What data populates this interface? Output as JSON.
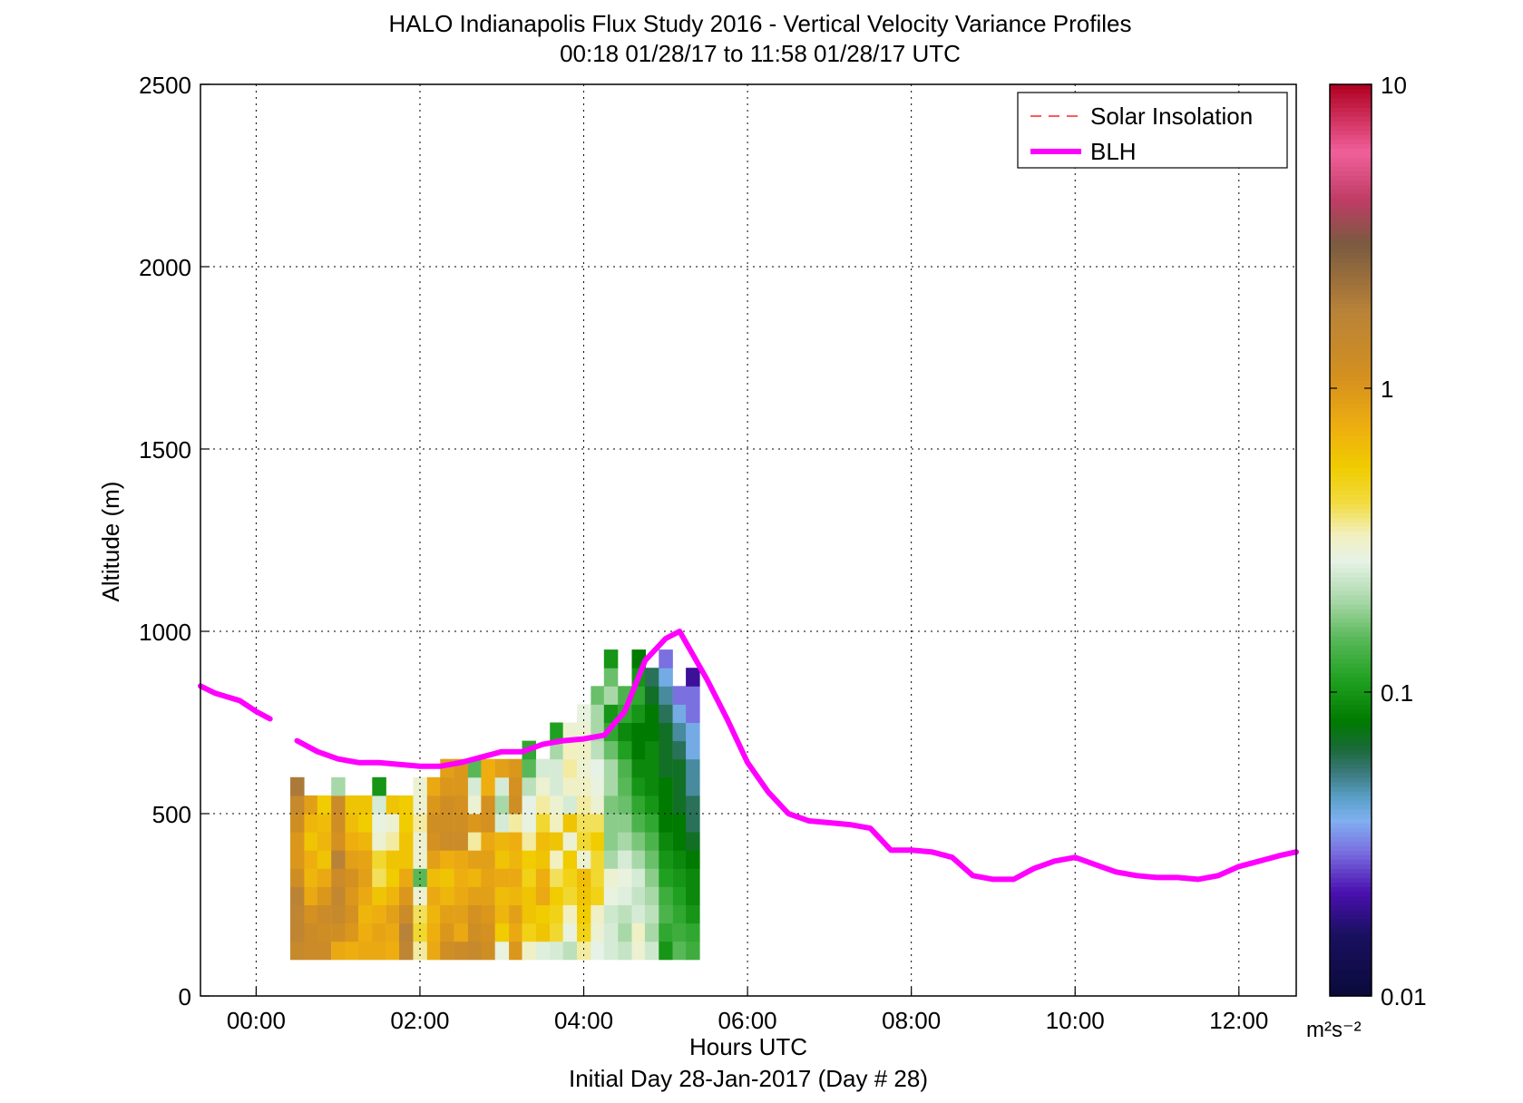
{
  "chart_data": {
    "type": "heatmap",
    "title": "HALO Indianapolis Flux Study 2016 - Vertical Velocity Variance Profiles",
    "subtitle": "00:18 01/28/17 to 11:58 01/28/17  UTC",
    "xlabel": "Hours UTC",
    "xlabel2": "Initial Day 28-Jan-2017 (Day # 28)",
    "ylabel": "Altitude (m)",
    "xlim": [
      -0.68,
      12.7
    ],
    "ylim": [
      0,
      2500
    ],
    "grid": true,
    "x_ticks": [
      {
        "value": 0,
        "label": "00:00"
      },
      {
        "value": 2,
        "label": "02:00"
      },
      {
        "value": 4,
        "label": "04:00"
      },
      {
        "value": 6,
        "label": "06:00"
      },
      {
        "value": 8,
        "label": "08:00"
      },
      {
        "value": 10,
        "label": "10:00"
      },
      {
        "value": 12,
        "label": "12:00"
      }
    ],
    "y_ticks": [
      {
        "value": 0,
        "label": "0"
      },
      {
        "value": 500,
        "label": "500"
      },
      {
        "value": 1000,
        "label": "1000"
      },
      {
        "value": 1500,
        "label": "1500"
      },
      {
        "value": 2000,
        "label": "2000"
      },
      {
        "value": 2500,
        "label": "2500"
      }
    ],
    "colorbar": {
      "scale": "log",
      "range": [
        0.01,
        10
      ],
      "unit": "m²s⁻²",
      "ticks": [
        {
          "value": 0.01,
          "label": "0.01"
        },
        {
          "value": 0.1,
          "label": "0.1"
        },
        {
          "value": 1,
          "label": "1"
        },
        {
          "value": 10,
          "label": "10"
        }
      ],
      "stops": [
        {
          "v": 0.01,
          "color": "#0a0a3a"
        },
        {
          "v": 0.016,
          "color": "#1a1060"
        },
        {
          "v": 0.022,
          "color": "#4a10b0"
        },
        {
          "v": 0.03,
          "color": "#7a70e0"
        },
        {
          "v": 0.038,
          "color": "#80b0f0"
        },
        {
          "v": 0.045,
          "color": "#5aa0c8"
        },
        {
          "v": 0.055,
          "color": "#3a7878"
        },
        {
          "v": 0.065,
          "color": "#1a6a3a"
        },
        {
          "v": 0.08,
          "color": "#007a00"
        },
        {
          "v": 0.11,
          "color": "#20a020"
        },
        {
          "v": 0.15,
          "color": "#58b858"
        },
        {
          "v": 0.2,
          "color": "#a8d8a8"
        },
        {
          "v": 0.27,
          "color": "#e6f2e6"
        },
        {
          "v": 0.33,
          "color": "#f2f0c0"
        },
        {
          "v": 0.42,
          "color": "#f2dc40"
        },
        {
          "v": 0.55,
          "color": "#f0cc00"
        },
        {
          "v": 0.75,
          "color": "#eeae10"
        },
        {
          "v": 1.1,
          "color": "#d49020"
        },
        {
          "v": 1.8,
          "color": "#b88238"
        },
        {
          "v": 3,
          "color": "#7a5a40"
        },
        {
          "v": 4.2,
          "color": "#c03c66"
        },
        {
          "v": 6,
          "color": "#f0609a"
        },
        {
          "v": 10,
          "color": "#b00020"
        }
      ]
    },
    "legend": {
      "position": "top-right",
      "entries": [
        {
          "name": "Solar Insolation",
          "style": "dashed",
          "color": "#ff2020"
        },
        {
          "name": "BLH",
          "style": "solid",
          "color": "#ff00ff"
        }
      ]
    },
    "cell_size": {
      "dx": 0.1667,
      "dy": 50
    },
    "columns": [
      {
        "x": 0.5,
        "y0": 100,
        "values": [
          1.4,
          1.6,
          1.6,
          1.7,
          1.2,
          1.0,
          1.0,
          1.2,
          1.4,
          2.0
        ]
      },
      {
        "x": 0.67,
        "y0": 100,
        "values": [
          1.3,
          1.3,
          1.1,
          0.8,
          0.7,
          0.75,
          0.6,
          0.7,
          0.9
        ]
      },
      {
        "x": 0.83,
        "y0": 100,
        "values": [
          1.3,
          1.2,
          1.3,
          1.0,
          0.8,
          0.6,
          0.7,
          0.65,
          0.55
        ]
      },
      {
        "x": 1.0,
        "y0": 100,
        "values": [
          0.8,
          1.2,
          1.4,
          1.5,
          1.3,
          1.8,
          1.1,
          1.2,
          1.3,
          0.2
        ]
      },
      {
        "x": 1.17,
        "y0": 100,
        "values": [
          0.75,
          1.0,
          1.1,
          1.0,
          1.1,
          0.9,
          0.75,
          0.65,
          0.6
        ]
      },
      {
        "x": 1.33,
        "y0": 100,
        "values": [
          0.8,
          0.75,
          0.7,
          0.8,
          0.9,
          0.85,
          0.7,
          0.55,
          0.6
        ]
      },
      {
        "x": 1.5,
        "y0": 100,
        "values": [
          0.8,
          0.85,
          0.75,
          0.6,
          0.4,
          0.45,
          0.3,
          0.28,
          0.25,
          0.1
        ]
      },
      {
        "x": 1.67,
        "y0": 100,
        "values": [
          0.75,
          0.8,
          0.9,
          0.7,
          0.55,
          0.6,
          0.35,
          0.3,
          0.6
        ]
      },
      {
        "x": 1.83,
        "y0": 100,
        "values": [
          1.6,
          1.8,
          1.3,
          1.0,
          0.8,
          0.6,
          0.6,
          0.55,
          0.55
        ]
      },
      {
        "x": 2.0,
        "y0": 100,
        "values": [
          0.35,
          0.45,
          0.4,
          0.3,
          0.15,
          0.3,
          0.3,
          0.35,
          0.3,
          0.3
        ]
      },
      {
        "x": 2.17,
        "y0": 100,
        "values": [
          0.8,
          0.75,
          0.7,
          0.8,
          0.65,
          0.9,
          1.1,
          1.2,
          1.0,
          0.8
        ]
      },
      {
        "x": 2.33,
        "y0": 100,
        "values": [
          1.2,
          1.0,
          0.9,
          0.7,
          0.6,
          0.75,
          1.3,
          1.2,
          1.2,
          1.0,
          0.9
        ]
      },
      {
        "x": 2.5,
        "y0": 100,
        "values": [
          1.3,
          0.8,
          0.9,
          0.8,
          0.75,
          0.8,
          1.3,
          1.2,
          1.1,
          1.0,
          1.0
        ]
      },
      {
        "x": 2.67,
        "y0": 100,
        "values": [
          1.4,
          1.2,
          1.1,
          0.9,
          0.7,
          0.9,
          0.35,
          1.0,
          0.3,
          0.25,
          0.15
        ]
      },
      {
        "x": 2.83,
        "y0": 100,
        "values": [
          1.2,
          1.1,
          1.0,
          0.9,
          0.85,
          0.9,
          0.8,
          1.1,
          1.1,
          0.75,
          0.75
        ]
      },
      {
        "x": 3.0,
        "y0": 100,
        "values": [
          0.28,
          0.55,
          0.7,
          0.65,
          0.8,
          0.6,
          0.7,
          0.25,
          0.2,
          0.25,
          0.9
        ]
      },
      {
        "x": 3.17,
        "y0": 100,
        "values": [
          1.0,
          0.8,
          0.9,
          0.7,
          0.8,
          0.7,
          0.75,
          0.35,
          1.2,
          1.1,
          1.0
        ]
      },
      {
        "x": 3.33,
        "y0": 100,
        "values": [
          0.32,
          0.5,
          0.6,
          0.6,
          0.5,
          0.55,
          0.35,
          0.28,
          0.27,
          0.22,
          0.15,
          0.12
        ]
      },
      {
        "x": 3.5,
        "y0": 100,
        "values": [
          0.26,
          0.6,
          0.55,
          0.8,
          0.75,
          0.6,
          0.65,
          0.45,
          0.35,
          0.3,
          0.25
        ]
      },
      {
        "x": 3.67,
        "y0": 100,
        "values": [
          0.25,
          0.45,
          0.5,
          0.55,
          0.4,
          0.33,
          0.6,
          0.33,
          0.3,
          0.25,
          0.25,
          0.2,
          0.11
        ]
      },
      {
        "x": 3.83,
        "y0": 100,
        "values": [
          0.22,
          0.28,
          0.33,
          0.45,
          0.5,
          0.55,
          0.3,
          0.6,
          0.25,
          0.32,
          0.35,
          0.33,
          0.3
        ]
      },
      {
        "x": 4.0,
        "y0": 100,
        "values": [
          0.35,
          0.5,
          0.55,
          0.6,
          0.65,
          0.3,
          0.45,
          0.4,
          0.35,
          0.32,
          0.3,
          0.32,
          0.3,
          0.28
        ]
      },
      {
        "x": 4.17,
        "y0": 100,
        "values": [
          0.27,
          0.3,
          0.32,
          0.5,
          0.45,
          0.45,
          0.55,
          0.4,
          0.3,
          0.28,
          0.27,
          0.22,
          0.2,
          0.2,
          0.16
        ]
      },
      {
        "x": 4.33,
        "y0": 100,
        "values": [
          0.25,
          0.25,
          0.24,
          0.28,
          0.3,
          0.2,
          0.18,
          0.18,
          0.17,
          0.2,
          0.2,
          0.16,
          0.12,
          0.1,
          0.2,
          0.16,
          0.1
        ]
      },
      {
        "x": 4.5,
        "y0": 100,
        "values": [
          0.23,
          0.2,
          0.22,
          0.26,
          0.28,
          0.25,
          0.2,
          0.18,
          0.16,
          0.15,
          0.14,
          0.11,
          0.09,
          0.12,
          0.14
        ]
      },
      {
        "x": 4.67,
        "y0": 100,
        "values": [
          0.3,
          0.32,
          0.25,
          0.23,
          0.25,
          0.2,
          0.17,
          0.14,
          0.12,
          0.1,
          0.09,
          0.08,
          0.08,
          0.1,
          0.12,
          0.1,
          0.08
        ]
      },
      {
        "x": 4.83,
        "y0": 100,
        "values": [
          0.24,
          0.2,
          0.22,
          0.2,
          0.18,
          0.16,
          0.14,
          0.12,
          0.1,
          0.09,
          0.09,
          0.09,
          0.08,
          0.08,
          0.07,
          0.06
        ]
      },
      {
        "x": 5.0,
        "y0": 100,
        "values": [
          0.1,
          0.12,
          0.14,
          0.13,
          0.11,
          0.1,
          0.09,
          0.08,
          0.08,
          0.08,
          0.07,
          0.07,
          0.07,
          0.06,
          0.05,
          0.04,
          0.03
        ]
      },
      {
        "x": 5.17,
        "y0": 100,
        "values": [
          0.15,
          0.13,
          0.12,
          0.11,
          0.1,
          0.09,
          0.08,
          0.08,
          0.07,
          0.07,
          0.07,
          0.06,
          0.05,
          0.04,
          0.03
        ]
      },
      {
        "x": 5.33,
        "y0": 100,
        "values": [
          0.13,
          0.12,
          0.1,
          0.09,
          0.09,
          0.08,
          0.07,
          0.06,
          0.06,
          0.05,
          0.05,
          0.04,
          0.04,
          0.03,
          0.03,
          0.02
        ]
      }
    ],
    "blh": {
      "x": [
        -0.68,
        -0.5,
        -0.2,
        0.0,
        0.17,
        null,
        0.5,
        0.75,
        1.0,
        1.25,
        1.5,
        1.75,
        2.0,
        2.25,
        2.5,
        2.75,
        3.0,
        3.25,
        3.5,
        3.75,
        4.0,
        4.25,
        4.5,
        4.75,
        5.0,
        5.17,
        5.5,
        5.75,
        6.0,
        6.25,
        6.5,
        6.75,
        7.0,
        7.25,
        7.5,
        7.75,
        8.0,
        8.25,
        8.5,
        8.75,
        9.0,
        9.25,
        9.5,
        9.75,
        10.0,
        10.25,
        10.5,
        10.75,
        11.0,
        11.25,
        11.5,
        11.75,
        12.0,
        12.25,
        12.5,
        12.7
      ],
      "y": [
        850,
        830,
        810,
        780,
        760,
        null,
        700,
        670,
        650,
        640,
        640,
        635,
        630,
        630,
        640,
        655,
        670,
        670,
        690,
        700,
        705,
        715,
        780,
        920,
        980,
        1000,
        870,
        760,
        640,
        560,
        500,
        480,
        475,
        470,
        460,
        400,
        400,
        395,
        380,
        330,
        320,
        320,
        350,
        370,
        380,
        360,
        340,
        330,
        325,
        325,
        320,
        330,
        355,
        370,
        385,
        395
      ]
    }
  },
  "tile_note_free": true
}
